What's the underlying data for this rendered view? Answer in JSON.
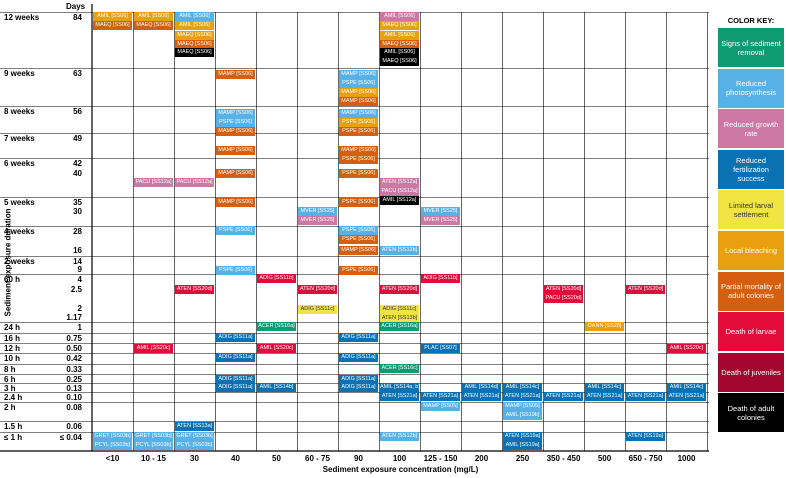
{
  "chart_data": {
    "type": "table",
    "xlabel": "Sediment exposure concentration (mg/L)",
    "ylabel": "Sediment exposure duration",
    "days_header": "Days",
    "columns": [
      "<10",
      "10 - 15",
      "30",
      "40",
      "50",
      "60 - 75",
      "90",
      "100",
      "125 - 150",
      "200",
      "250",
      "350 - 450",
      "500",
      "650 - 750",
      "1000"
    ],
    "rows": [
      {
        "period": "12 weeks",
        "days": [
          "84"
        ]
      },
      {
        "period": "9 weeks",
        "days": [
          "63"
        ]
      },
      {
        "period": "8 weeks",
        "days": [
          "56"
        ]
      },
      {
        "period": "7 weeks",
        "days": [
          "49"
        ]
      },
      {
        "period": "6 weeks",
        "days": [
          "42",
          "40"
        ]
      },
      {
        "period": "5 weeks",
        "days": [
          "35",
          "30"
        ]
      },
      {
        "period": "4 weeks",
        "days": [
          "28",
          "16"
        ]
      },
      {
        "period": "2 weeks",
        "days": [
          "14",
          "9"
        ]
      },
      {
        "period": "60 h",
        "days": [
          "4",
          "2.5",
          "2",
          "1.17"
        ]
      },
      {
        "period": "24 h",
        "days": [
          "1"
        ]
      },
      {
        "period": "16 h",
        "days": [
          "0.75"
        ]
      },
      {
        "period": "12 h",
        "days": [
          "0.50"
        ]
      },
      {
        "period": "10 h",
        "days": [
          "0.42"
        ]
      },
      {
        "period": "8 h",
        "days": [
          "0.33"
        ]
      },
      {
        "period": "6 h",
        "days": [
          "0.25"
        ]
      },
      {
        "period": "3 h",
        "days": [
          "0.13"
        ]
      },
      {
        "period": "2.4 h",
        "days": [
          "0.10"
        ]
      },
      {
        "period": "2 h",
        "days": [
          "0.08"
        ]
      },
      {
        "period": "1.5 h",
        "days": [
          "0.06"
        ]
      },
      {
        "period": "≤ 1 h",
        "days": [
          "≤ 0.04"
        ]
      }
    ],
    "legend_title": "COLOR KEY:",
    "legend": [
      {
        "key": "removal",
        "label": "Signs of sediment removal",
        "color": "#0e9a73"
      },
      {
        "key": "photo",
        "label": "Reduced photosynthesis",
        "color": "#58b1e6"
      },
      {
        "key": "growth",
        "label": "Reduced growth rate",
        "color": "#cd77a5"
      },
      {
        "key": "fert",
        "label": "Reduced fertilization success",
        "color": "#0a72b2"
      },
      {
        "key": "settle",
        "label": "Limited larval settlement",
        "color": "#f0e443"
      },
      {
        "key": "bleach",
        "label": "Local bleaching",
        "color": "#e9a00f"
      },
      {
        "key": "partial",
        "label": "Partial mortality of adult colonies",
        "color": "#d55f0e"
      },
      {
        "key": "larvae",
        "label": "Death of larvae",
        "color": "#e30b3a"
      },
      {
        "key": "juv",
        "label": "Death of juveniles",
        "color": "#a3062e"
      },
      {
        "key": "adult",
        "label": "Death of adult colonies",
        "color": "#000000"
      }
    ],
    "cells": [
      {
        "col": 0,
        "slot": 0,
        "label": "AMIL [SS06]",
        "effect": "bleach"
      },
      {
        "col": 0,
        "slot": 1,
        "label": "MAEQ [SS06]",
        "effect": "partial"
      },
      {
        "col": 1,
        "slot": 0,
        "label": "AMIL [SS06]",
        "effect": "bleach"
      },
      {
        "col": 1,
        "slot": 1,
        "label": "MAEQ [SS06]",
        "effect": "partial"
      },
      {
        "col": 2,
        "slot": 0,
        "label": "AMIL [SS06]",
        "effect": "photo"
      },
      {
        "col": 2,
        "slot": 1,
        "label": "AMIL [SS06]",
        "effect": "bleach"
      },
      {
        "col": 2,
        "slot": 2,
        "label": "MAEQ [SS06]",
        "effect": "bleach"
      },
      {
        "col": 2,
        "slot": 3,
        "label": "MAEQ [SS06]",
        "effect": "partial"
      },
      {
        "col": 2,
        "slot": 4,
        "label": "MAEQ [SS06]",
        "effect": "adult"
      },
      {
        "col": 7,
        "slot": 0,
        "label": "AMIL [SS06]",
        "effect": "growth"
      },
      {
        "col": 7,
        "slot": 1,
        "label": "MAEQ [SS06]",
        "effect": "bleach"
      },
      {
        "col": 7,
        "slot": 2,
        "label": "AMIL [SS06]",
        "effect": "bleach"
      },
      {
        "col": 7,
        "slot": 3,
        "label": "MAEQ [SS06]",
        "effect": "partial"
      },
      {
        "col": 7,
        "slot": 4,
        "label": "AMIL [SS06]",
        "effect": "adult"
      },
      {
        "col": 7,
        "slot": 5,
        "label": "MAEQ [SS06]",
        "effect": "adult"
      },
      {
        "col": 3,
        "slot": 6,
        "label": "MAMP [SS06]",
        "effect": "partial"
      },
      {
        "col": 6,
        "slot": 6,
        "label": "MAMP [SS06]",
        "effect": "photo"
      },
      {
        "col": 6,
        "slot": 7,
        "label": "PSPE [SS06]",
        "effect": "photo"
      },
      {
        "col": 6,
        "slot": 8,
        "label": "MAMP [SS06]",
        "effect": "bleach"
      },
      {
        "col": 6,
        "slot": 9,
        "label": "MAMP [SS06]",
        "effect": "partial"
      },
      {
        "col": 3,
        "slot": 10,
        "label": "MAMP [SS06]",
        "effect": "photo"
      },
      {
        "col": 3,
        "slot": 11,
        "label": "PSPE [SS06]",
        "effect": "photo"
      },
      {
        "col": 3,
        "slot": 12,
        "label": "MAMP [SS06]",
        "effect": "partial"
      },
      {
        "col": 6,
        "slot": 10,
        "label": "MAMP [SS06]",
        "effect": "photo"
      },
      {
        "col": 6,
        "slot": 11,
        "label": "PSPE [SS06]",
        "effect": "bleach"
      },
      {
        "col": 6,
        "slot": 12,
        "label": "PSPE [SS06]",
        "effect": "partial"
      },
      {
        "col": 3,
        "slot": 14,
        "label": "MAMP [SS06]",
        "effect": "partial"
      },
      {
        "col": 6,
        "slot": 14,
        "label": "MAMP [SS06]",
        "effect": "partial"
      },
      {
        "col": 6,
        "slot": 15,
        "label": "PSPE [SS06]",
        "effect": "partial"
      },
      {
        "col": 3,
        "slot": 17,
        "label": "MAMP [SS06]",
        "effect": "partial"
      },
      {
        "col": 6,
        "slot": 17,
        "label": "PSPE [SS06]",
        "effect": "partial"
      },
      {
        "col": 1,
        "slot": 18,
        "label": "PACU [SS12a]",
        "effect": "growth"
      },
      {
        "col": 2,
        "slot": 18,
        "label": "PACU [SS12a]",
        "effect": "growth"
      },
      {
        "col": 7,
        "slot": 18,
        "label": "ATEN [SS12a]",
        "effect": "growth"
      },
      {
        "col": 7,
        "slot": 19,
        "label": "PACU [SS12a]",
        "effect": "growth"
      },
      {
        "col": 7,
        "slot": 20,
        "label": "AMIL [SS12a]",
        "effect": "adult"
      },
      {
        "col": 3,
        "slot": 21,
        "label": "MAMP [SS06]",
        "effect": "partial"
      },
      {
        "col": 5,
        "slot": 22,
        "label": "MVER [SS25]",
        "effect": "photo"
      },
      {
        "col": 5,
        "slot": 23,
        "label": "MVER [SS25]",
        "effect": "growth"
      },
      {
        "col": 6,
        "slot": 21,
        "label": "PSPE [SS06]",
        "effect": "partial"
      },
      {
        "col": 8,
        "slot": 22,
        "label": "MVER [SS25]",
        "effect": "photo"
      },
      {
        "col": 8,
        "slot": 23,
        "label": "MVER [SS25]",
        "effect": "growth"
      },
      {
        "col": 3,
        "slot": 24,
        "label": "PSPE [SS06]",
        "effect": "photo"
      },
      {
        "col": 6,
        "slot": 24,
        "label": "PSPE [SS06]",
        "effect": "photo"
      },
      {
        "col": 6,
        "slot": 25,
        "label": "PSPE [SS06]",
        "effect": "partial"
      },
      {
        "col": 6,
        "slot": 26,
        "label": "MAMP [SS06]",
        "effect": "partial"
      },
      {
        "col": 7,
        "slot": 26,
        "label": "ATEN [SS12b]",
        "effect": "photo"
      },
      {
        "col": 3,
        "slot": 28,
        "label": "PSPE [SS06]",
        "effect": "photo"
      },
      {
        "col": 6,
        "slot": 28,
        "label": "PSPE [SS06]",
        "effect": "partial"
      },
      {
        "col": 4,
        "slot": 29,
        "label": "AMUR [SS17a]",
        "effect": "photo"
      },
      {
        "col": 4,
        "slot": 30,
        "label": "ADIG [SS11b]",
        "effect": "larvae"
      },
      {
        "col": 8,
        "slot": 30,
        "label": "ADIG [SS11b]",
        "effect": "larvae"
      },
      {
        "col": 2,
        "slot": 31,
        "label": "ATEN [SS20d]",
        "effect": "larvae"
      },
      {
        "col": 5,
        "slot": 31,
        "label": "ATEN [SS20d]",
        "effect": "larvae"
      },
      {
        "col": 7,
        "slot": 31,
        "label": "ATEN [SS20d]",
        "effect": "larvae"
      },
      {
        "col": 11,
        "slot": 31,
        "label": "ATEN [SS20d]",
        "effect": "larvae"
      },
      {
        "col": 11,
        "slot": 32,
        "label": "PACU [SS20d]",
        "effect": "larvae"
      },
      {
        "col": 13,
        "slot": 31,
        "label": "ATEN [SS20d]",
        "effect": "larvae"
      },
      {
        "col": 5,
        "slot": 33,
        "label": "ADIG [SS11c]",
        "effect": "settle"
      },
      {
        "col": 7,
        "slot": 33,
        "label": "ADIG [SS11c]",
        "effect": "settle"
      },
      {
        "col": 7,
        "slot": 34,
        "label": "ATEN [SS13b]",
        "effect": "settle"
      },
      {
        "col": 4,
        "slot": 35,
        "label": "ACER [SS16a]",
        "effect": "removal"
      },
      {
        "col": 7,
        "slot": 35,
        "label": "ACER [SS16a]",
        "effect": "removal"
      },
      {
        "col": 12,
        "slot": 35,
        "label": "OANN [SS28]",
        "effect": "bleach"
      },
      {
        "col": 3,
        "slot": 36,
        "label": "ADIG [SS11a]",
        "effect": "fert"
      },
      {
        "col": 6,
        "slot": 36,
        "label": "ADIG [SS11a]",
        "effect": "fert"
      },
      {
        "col": 1,
        "slot": 37,
        "label": "AMIL [SS20c]",
        "effect": "larvae"
      },
      {
        "col": 4,
        "slot": 37,
        "label": "AMIL [SS20c]",
        "effect": "larvae"
      },
      {
        "col": 8,
        "slot": 37,
        "label": "PLAC [SS07]",
        "effect": "fert"
      },
      {
        "col": 14,
        "slot": 37,
        "label": "AMIL [SS20c]",
        "effect": "larvae"
      },
      {
        "col": 3,
        "slot": 38,
        "label": "ADIG [SS11a]",
        "effect": "fert"
      },
      {
        "col": 6,
        "slot": 38,
        "label": "ADIG [SS11a]",
        "effect": "fert"
      },
      {
        "col": 7,
        "slot": 39,
        "label": "ACER [SS16c]",
        "effect": "removal"
      },
      {
        "col": 3,
        "slot": 40,
        "label": "ADIG [SS11a]",
        "effect": "fert"
      },
      {
        "col": 6,
        "slot": 40,
        "label": "ADIG [SS11a]",
        "effect": "fert"
      },
      {
        "col": 3,
        "slot": 41,
        "label": "ADIG [SS11a]",
        "effect": "fert"
      },
      {
        "col": 4,
        "slot": 41,
        "label": "AMIL [SS14b]",
        "effect": "fert"
      },
      {
        "col": 6,
        "slot": 41,
        "label": "ADIG [SS11a]",
        "effect": "fert"
      },
      {
        "col": 7,
        "slot": 41,
        "label": "AMIL [SS14a, b]",
        "effect": "fert"
      },
      {
        "col": 9,
        "slot": 41,
        "label": "AMIL [SS14d]",
        "effect": "fert"
      },
      {
        "col": 10,
        "slot": 41,
        "label": "AMIL [SS14c]",
        "effect": "fert"
      },
      {
        "col": 12,
        "slot": 41,
        "label": "AMIL [SS14c]",
        "effect": "fert"
      },
      {
        "col": 14,
        "slot": 41,
        "label": "AMIL [SS14c]",
        "effect": "fert"
      },
      {
        "col": 7,
        "slot": 42,
        "label": "ATEN [SS21a]",
        "effect": "fert"
      },
      {
        "col": 8,
        "slot": 42,
        "label": "ATEN [SS21a]",
        "effect": "fert"
      },
      {
        "col": 9,
        "slot": 42,
        "label": "ATEN [SS21a]",
        "effect": "fert"
      },
      {
        "col": 10,
        "slot": 42,
        "label": "ATEN [SS21a]",
        "effect": "fert"
      },
      {
        "col": 11,
        "slot": 42,
        "label": "ATEN [SS21a]",
        "effect": "fert"
      },
      {
        "col": 12,
        "slot": 42,
        "label": "ATEN [SS21a]",
        "effect": "fert"
      },
      {
        "col": 13,
        "slot": 42,
        "label": "ATEN [SS21a]",
        "effect": "fert"
      },
      {
        "col": 14,
        "slot": 42,
        "label": "ATEN [SS21a]",
        "effect": "fert"
      },
      {
        "col": 8,
        "slot": 43,
        "label": "MAMP [SS05]",
        "effect": "photo"
      },
      {
        "col": 10,
        "slot": 43,
        "label": "MAMP [SS05]",
        "effect": "photo"
      },
      {
        "col": 10,
        "slot": 44,
        "label": "AMIL [SS19b]",
        "effect": "photo"
      },
      {
        "col": 2,
        "slot": 45,
        "label": "ATEN [SS13a]",
        "effect": "fert"
      },
      {
        "col": 0,
        "slot": 46,
        "label": "GRET [SS03b]",
        "effect": "photo"
      },
      {
        "col": 0,
        "slot": 47,
        "label": "PCYL [SS03b]",
        "effect": "photo"
      },
      {
        "col": 1,
        "slot": 46,
        "label": "GRET [SS03b]",
        "effect": "photo"
      },
      {
        "col": 1,
        "slot": 47,
        "label": "PCYL [SS03b]",
        "effect": "photo"
      },
      {
        "col": 2,
        "slot": 46,
        "label": "GRET [SS03b]",
        "effect": "photo"
      },
      {
        "col": 2,
        "slot": 47,
        "label": "PCYL [SS03b]",
        "effect": "photo"
      },
      {
        "col": 7,
        "slot": 46,
        "label": "ATEN [SS12b]",
        "effect": "photo"
      },
      {
        "col": 10,
        "slot": 46,
        "label": "ATEN [SS19a]",
        "effect": "fert"
      },
      {
        "col": 10,
        "slot": 47,
        "label": "AMIL [SS19a]",
        "effect": "fert"
      },
      {
        "col": 13,
        "slot": 46,
        "label": "ATEN [SS19a]",
        "effect": "fert"
      }
    ]
  }
}
